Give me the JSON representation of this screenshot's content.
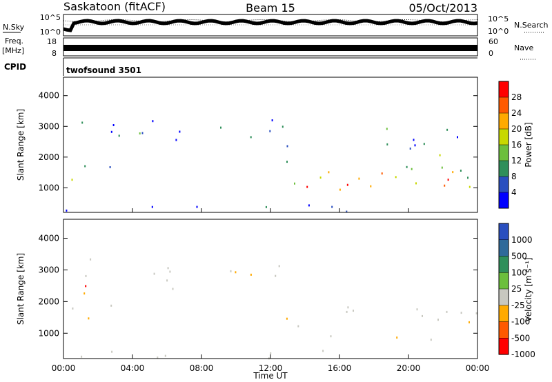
{
  "header": {
    "station": "Saskatoon (fitACF)",
    "beam": "Beam 15",
    "date": "05/Oct/2013"
  },
  "status_panel": {
    "nsky_label": "N.Sky",
    "nsearch_label": "N.Search",
    "noise_ticks": [
      "10^5",
      "10^0"
    ],
    "noise_ticks_right": [
      "10^5",
      "10^0"
    ],
    "freq_label": "Freq.",
    "freq_unit": "[MHz]",
    "freq_ticks": [
      "18",
      "8"
    ],
    "nave_label": "Nave",
    "nave_ticks": [
      "60",
      "0"
    ],
    "cpid_label": "CPID",
    "cpid_value": "twofsound 3501"
  },
  "chart_data": [
    {
      "type": "heatmap",
      "parameter": "power",
      "ylabel": "Slant Range [km]",
      "ylim": [
        200,
        4600
      ],
      "yticks": [
        1000,
        2000,
        3000,
        4000
      ],
      "xlim_hours": [
        0,
        24
      ],
      "colorbar_label": "Power [dB]",
      "colorbar_ticks": [
        "28",
        "24",
        "20",
        "16",
        "12",
        "8",
        "4"
      ],
      "colorbar_colors": [
        "#ff0000",
        "#ff5a00",
        "#ffaa00",
        "#c8d800",
        "#6cbf3c",
        "#2f8f5a",
        "#2a4fbf",
        "#0000ff"
      ],
      "scatter_regions": [
        {
          "t0": 0.0,
          "t1": 0.7,
          "r0": 900,
          "r1": 2200,
          "level": 0.45
        },
        {
          "t0": 0.6,
          "t1": 3.2,
          "r0": 1300,
          "r1": 3400,
          "level": 0.2
        },
        {
          "t0": 3.3,
          "t1": 7.2,
          "r0": 2400,
          "r1": 3500,
          "level": 0.15
        },
        {
          "t0": 8.0,
          "t1": 12.8,
          "r0": 2600,
          "r1": 3500,
          "level": 0.15
        },
        {
          "t0": 12.5,
          "t1": 13.6,
          "r0": 1200,
          "r1": 2900,
          "level": 0.3
        },
        {
          "t0": 13.3,
          "t1": 24.0,
          "r0": 800,
          "r1": 2100,
          "level": 0.55
        },
        {
          "t0": 14.0,
          "t1": 24.0,
          "r0": 900,
          "r1": 1400,
          "level": 0.85
        },
        {
          "t0": 0.0,
          "t1": 24.0,
          "r0": 220,
          "r1": 500,
          "level": 0.1
        },
        {
          "t0": 18.0,
          "t1": 24.0,
          "r0": 2300,
          "r1": 3500,
          "level": 0.12
        }
      ]
    },
    {
      "type": "heatmap",
      "parameter": "velocity",
      "ylabel": "Slant Range [km]",
      "ylim": [
        200,
        4600
      ],
      "yticks": [
        1000,
        2000,
        3000,
        4000
      ],
      "xlim_hours": [
        0,
        24
      ],
      "xticks": [
        "00:00",
        "04:00",
        "08:00",
        "12:00",
        "16:00",
        "20:00",
        "00:00"
      ],
      "xlabel": "Time UT",
      "colorbar_label": "Velocity [m s⁻¹]",
      "colorbar_ticks": [
        "1000",
        "500",
        "100",
        "25",
        "-25",
        "-100",
        "-500",
        "-1000"
      ],
      "colorbar_colors": [
        "#2a4fbf",
        "#2f6a9a",
        "#2f8f5a",
        "#6cbf3c",
        "#c8c8c0",
        "#ffaa00",
        "#ff5a00",
        "#ff0000"
      ],
      "scatter_regions": [
        {
          "t0": 0.0,
          "t1": 0.7,
          "r0": 900,
          "r1": 2200,
          "level": 0.5
        },
        {
          "t0": 0.6,
          "t1": 3.2,
          "r0": 1300,
          "r1": 3400,
          "level": 0.5
        },
        {
          "t0": 3.3,
          "t1": 7.2,
          "r0": 2400,
          "r1": 3500,
          "level": 0.5
        },
        {
          "t0": 8.0,
          "t1": 12.8,
          "r0": 2600,
          "r1": 3500,
          "level": 0.5
        },
        {
          "t0": 12.5,
          "t1": 13.6,
          "r0": 1200,
          "r1": 2900,
          "level": 0.5
        },
        {
          "t0": 13.3,
          "t1": 24.0,
          "r0": 800,
          "r1": 1900,
          "level": 0.5
        },
        {
          "t0": 0.0,
          "t1": 24.0,
          "r0": 220,
          "r1": 500,
          "level": 0.35
        }
      ]
    }
  ]
}
